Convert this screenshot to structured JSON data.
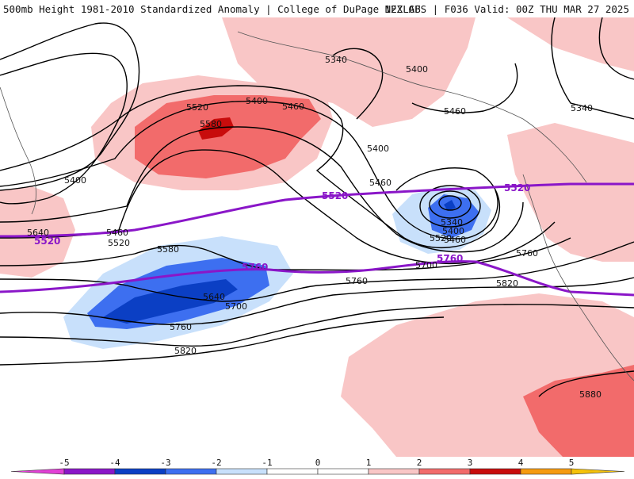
{
  "header": {
    "title": "500mb Height 1981-2010 Standardized Anomaly | College of DuPage NEXLAB",
    "run": "12Z GFS | F036 Valid: 00Z THU MAR 27 2025"
  },
  "colors": {
    "strong_negative": "#0b3fc4",
    "negative": "#3d6ff0",
    "weak_negative": "#c8e0fb",
    "weak_positive": "#f9c6c6",
    "positive": "#f26b6b",
    "strong_positive": "#c80c0c",
    "highlight_contour": "#8a16c8",
    "contour": "#000000"
  },
  "contour_labels": [
    {
      "id": "c5340a",
      "text": "5340"
    },
    {
      "id": "c5400a",
      "text": "5400"
    },
    {
      "id": "c5340b",
      "text": "5340"
    },
    {
      "id": "c5400b",
      "text": "5400"
    },
    {
      "id": "c5460a",
      "text": "5460"
    },
    {
      "id": "c5520a",
      "text": "5520"
    },
    {
      "id": "c5580a",
      "text": "5580"
    },
    {
      "id": "c5460b",
      "text": "5460"
    },
    {
      "id": "c5400c",
      "text": "5400"
    },
    {
      "id": "c5460c",
      "text": "5460"
    },
    {
      "id": "c5400d",
      "text": "5400"
    },
    {
      "id": "c5460d",
      "text": "5460"
    },
    {
      "id": "c5520b",
      "text": "5520"
    },
    {
      "id": "c5340c",
      "text": "5340"
    },
    {
      "id": "c5400e",
      "text": "5400"
    },
    {
      "id": "c5460e",
      "text": "5460"
    },
    {
      "id": "c5520c",
      "text": "5520"
    },
    {
      "id": "c5580b",
      "text": "5580"
    },
    {
      "id": "c5640a",
      "text": "5640"
    },
    {
      "id": "c5700a",
      "text": "5700"
    },
    {
      "id": "c5760a",
      "text": "5760"
    },
    {
      "id": "c5820a",
      "text": "5820"
    },
    {
      "id": "c5640b",
      "text": "5640"
    },
    {
      "id": "c5700b",
      "text": "5700"
    },
    {
      "id": "c5760b",
      "text": "5760"
    },
    {
      "id": "c5760c",
      "text": "5760"
    },
    {
      "id": "c5820b",
      "text": "5820"
    },
    {
      "id": "c5880a",
      "text": "5880"
    }
  ],
  "highlight_labels": [
    {
      "id": "p5520a",
      "text": "5520"
    },
    {
      "id": "p5520b",
      "text": "5520"
    },
    {
      "id": "p5520c",
      "text": "5520"
    },
    {
      "id": "p5760a",
      "text": "5760"
    },
    {
      "id": "p5760b",
      "text": "5760"
    }
  ],
  "colorbar": {
    "ticks": [
      "-5",
      "-4",
      "-3",
      "-2",
      "-1",
      "0",
      "1",
      "2",
      "3",
      "4",
      "5"
    ],
    "colors": [
      "#e23fd6",
      "#8a16c8",
      "#0b3fc4",
      "#3d6ff0",
      "#c8e0fb",
      "#ffffff",
      "#ffffff",
      "#f9c6c6",
      "#f26b6b",
      "#c80c0c",
      "#f59a10",
      "#f5c20a"
    ]
  }
}
